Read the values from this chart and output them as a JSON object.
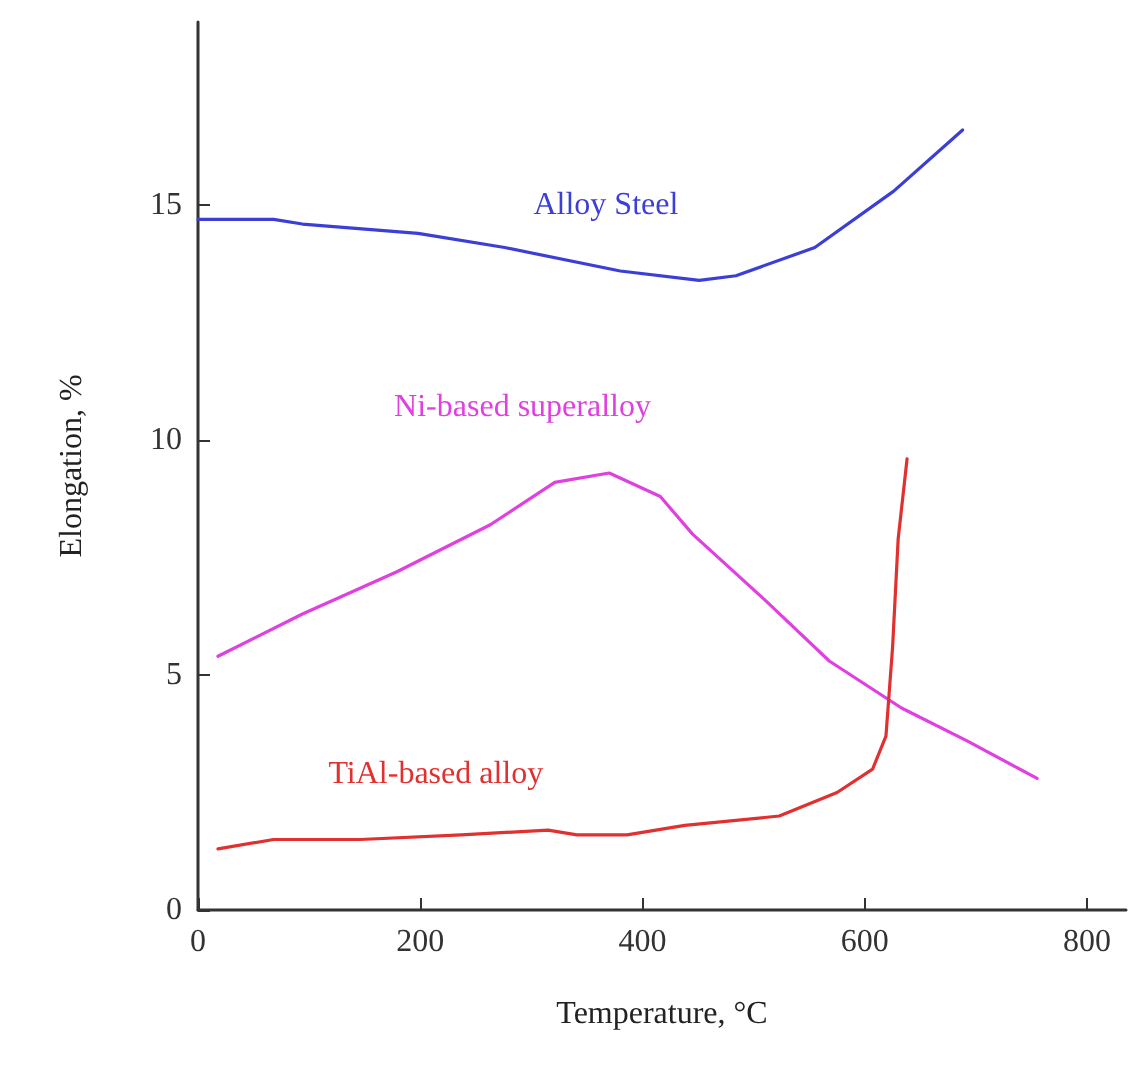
{
  "chart_data": {
    "type": "line",
    "xlabel": "Temperature, °C",
    "ylabel": "Elongation, %",
    "xlim": [
      0,
      835
    ],
    "ylim": [
      0,
      18.9
    ],
    "xticks": [
      0,
      200,
      400,
      600,
      800
    ],
    "yticks": [
      0,
      5,
      10,
      15
    ],
    "grid": false,
    "legend": false,
    "marker": "none",
    "line_style": "solid",
    "series": [
      {
        "name": "Alloy Steel",
        "color": "#3b3fd6",
        "x": [
          0,
          68,
          94,
          198,
          276,
          380,
          451,
          484,
          555,
          626,
          688
        ],
        "values": [
          14.7,
          14.7,
          14.6,
          14.4,
          14.1,
          13.6,
          13.4,
          13.5,
          14.1,
          15.3,
          16.6
        ]
      },
      {
        "name": "Ni-based superalloy",
        "color": "#e040e0",
        "x": [
          18,
          94,
          179,
          263,
          321,
          370,
          416,
          445,
          510,
          568,
          633,
          692,
          755
        ],
        "values": [
          5.4,
          6.3,
          7.2,
          8.2,
          9.1,
          9.3,
          8.8,
          8.0,
          6.6,
          5.3,
          4.3,
          3.6,
          2.8
        ]
      },
      {
        "name": "TiAl-based alloy",
        "color": "#e03030",
        "x": [
          18,
          68,
          146,
          237,
          315,
          341,
          386,
          438,
          523,
          575,
          607,
          619,
          625,
          630,
          638
        ],
        "values": [
          1.3,
          1.5,
          1.5,
          1.6,
          1.7,
          1.6,
          1.6,
          1.8,
          2.0,
          2.5,
          3.0,
          3.7,
          5.6,
          7.9,
          9.6
        ]
      }
    ]
  }
}
